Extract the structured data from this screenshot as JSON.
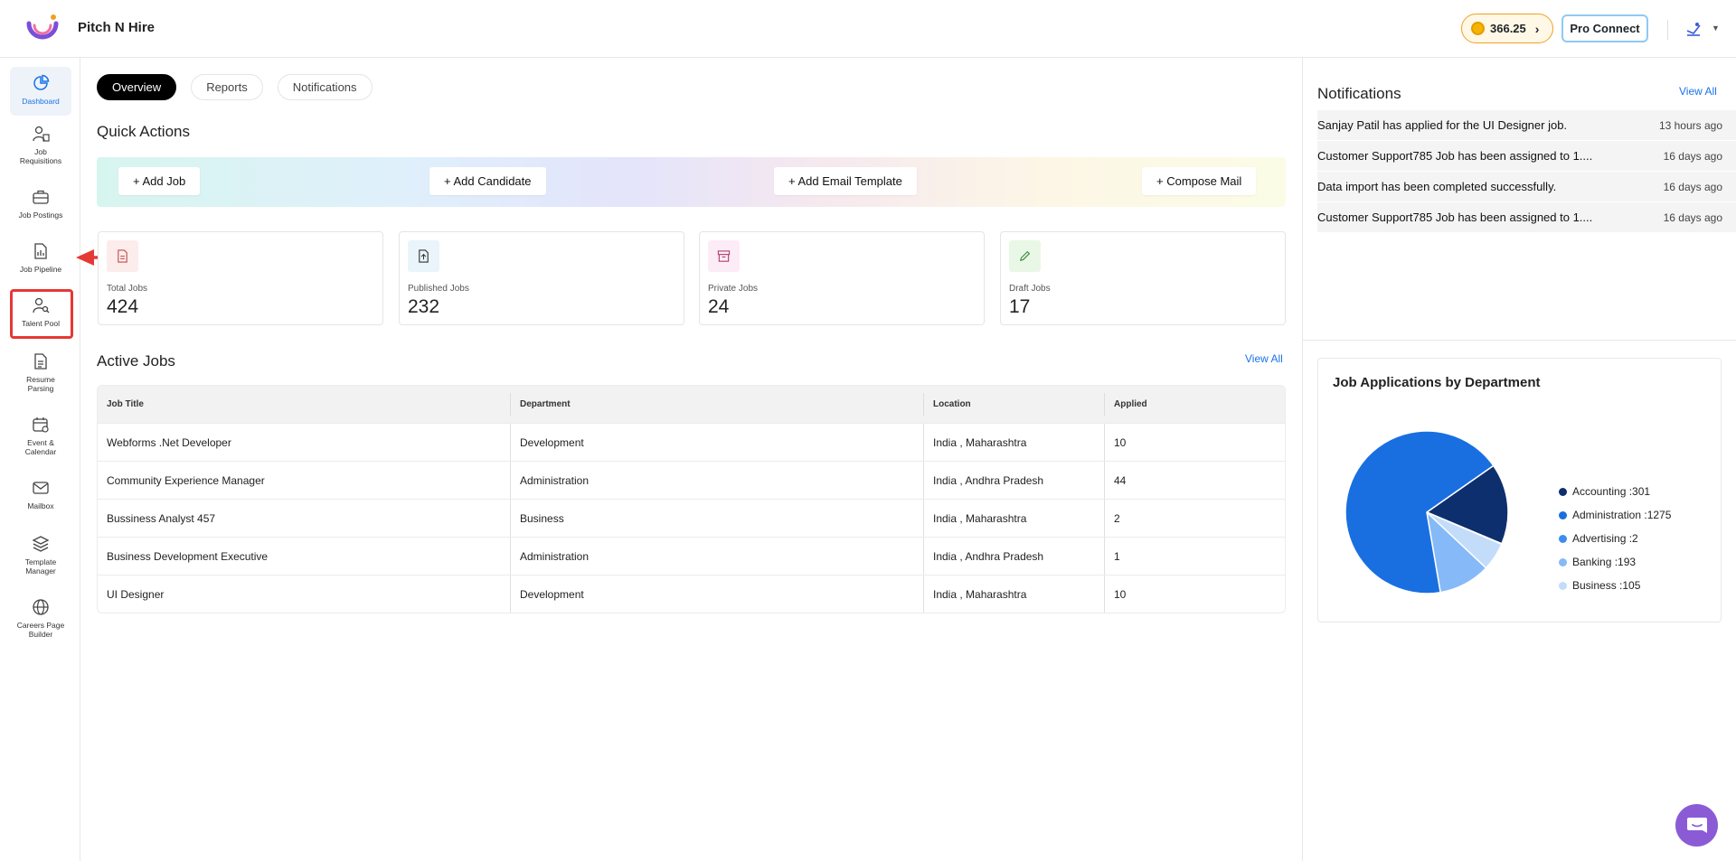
{
  "header": {
    "app_title": "Pitch N Hire",
    "credits": "366.25",
    "pro_connect": "Pro Connect"
  },
  "sidebar": {
    "items": [
      {
        "label": "Dashboard",
        "icon": "dashboard-icon",
        "active": true
      },
      {
        "label": "Job Requisitions",
        "icon": "job-requisitions-icon"
      },
      {
        "label": "Job Postings",
        "icon": "briefcase-icon"
      },
      {
        "label": "Job Pipeline",
        "icon": "pipeline-icon"
      },
      {
        "label": "Talent Pool",
        "icon": "talent-search-icon"
      },
      {
        "label": "Resume Parsing",
        "icon": "resume-icon"
      },
      {
        "label": "Event & Calendar",
        "icon": "calendar-icon"
      },
      {
        "label": "Mailbox",
        "icon": "mail-icon"
      },
      {
        "label": "Template Manager",
        "icon": "layers-icon"
      },
      {
        "label": "Careers Page Builder",
        "icon": "globe-icon"
      }
    ]
  },
  "tabs": [
    "Overview",
    "Reports",
    "Notifications"
  ],
  "quick_actions": {
    "title": "Quick Actions",
    "buttons": [
      "+ Add Job",
      "+ Add Candidate",
      "+ Add Email Template",
      "+ Compose Mail"
    ]
  },
  "stats": [
    {
      "label": "Total Jobs",
      "value": "424",
      "icon": "document-icon",
      "bg": "#fdecec",
      "color": "#c0504d"
    },
    {
      "label": "Published Jobs",
      "value": "232",
      "icon": "file-upload-icon",
      "bg": "#eaf4fb",
      "color": "#333333"
    },
    {
      "label": "Private Jobs",
      "value": "24",
      "icon": "archive-icon",
      "bg": "#fcecf6",
      "color": "#b0406f"
    },
    {
      "label": "Draft Jobs",
      "value": "17",
      "icon": "pencil-icon",
      "bg": "#e9f8e6",
      "color": "#3d8a3d"
    }
  ],
  "active_jobs": {
    "title": "Active Jobs",
    "view_all": "View All",
    "columns": [
      "Job Title",
      "Department",
      "Location",
      "Applied"
    ],
    "rows": [
      [
        "Webforms .Net Developer",
        "Development",
        "India , Maharashtra",
        "10"
      ],
      [
        "Community Experience Manager",
        "Administration",
        "India , Andhra Pradesh",
        "44"
      ],
      [
        "Bussiness Analyst 457",
        "Business",
        "India , Maharashtra",
        "2"
      ],
      [
        "Business Development Executive",
        "Administration",
        "India , Andhra Pradesh",
        "1"
      ],
      [
        "UI Designer",
        "Development",
        "India , Maharashtra",
        "10"
      ]
    ]
  },
  "notifications": {
    "title": "Notifications",
    "view_all": "View All",
    "items": [
      {
        "text": "Sanjay Patil has applied for the UI Designer job.",
        "time": "13 hours ago"
      },
      {
        "text": "Customer Support785 Job has been assigned to 1....",
        "time": "16 days ago"
      },
      {
        "text": "Data import has been completed successfully.",
        "time": "16 days ago"
      },
      {
        "text": "Customer Support785 Job has been assigned to 1....",
        "time": "16 days ago"
      }
    ]
  },
  "chart_data": {
    "type": "pie",
    "title": "Job Applications by Department",
    "legend_position": "right",
    "slices": [
      {
        "name": "Accounting",
        "label": "Accounting :301",
        "value": 301,
        "color": "#0d2f6e"
      },
      {
        "name": "Administration",
        "label": "Administration :1275",
        "value": 1275,
        "color": "#1a6fe0"
      },
      {
        "name": "Advertising",
        "label": "Advertising :2",
        "value": 2,
        "color": "#3d8df0"
      },
      {
        "name": "Banking",
        "label": "Banking :193",
        "value": 193,
        "color": "#86b9f7"
      },
      {
        "name": "Business",
        "label": "Business :105",
        "value": 105,
        "color": "#c3dcfa"
      }
    ]
  },
  "colors": {
    "accent": "#1a73e8",
    "highlight": "#e53935"
  }
}
